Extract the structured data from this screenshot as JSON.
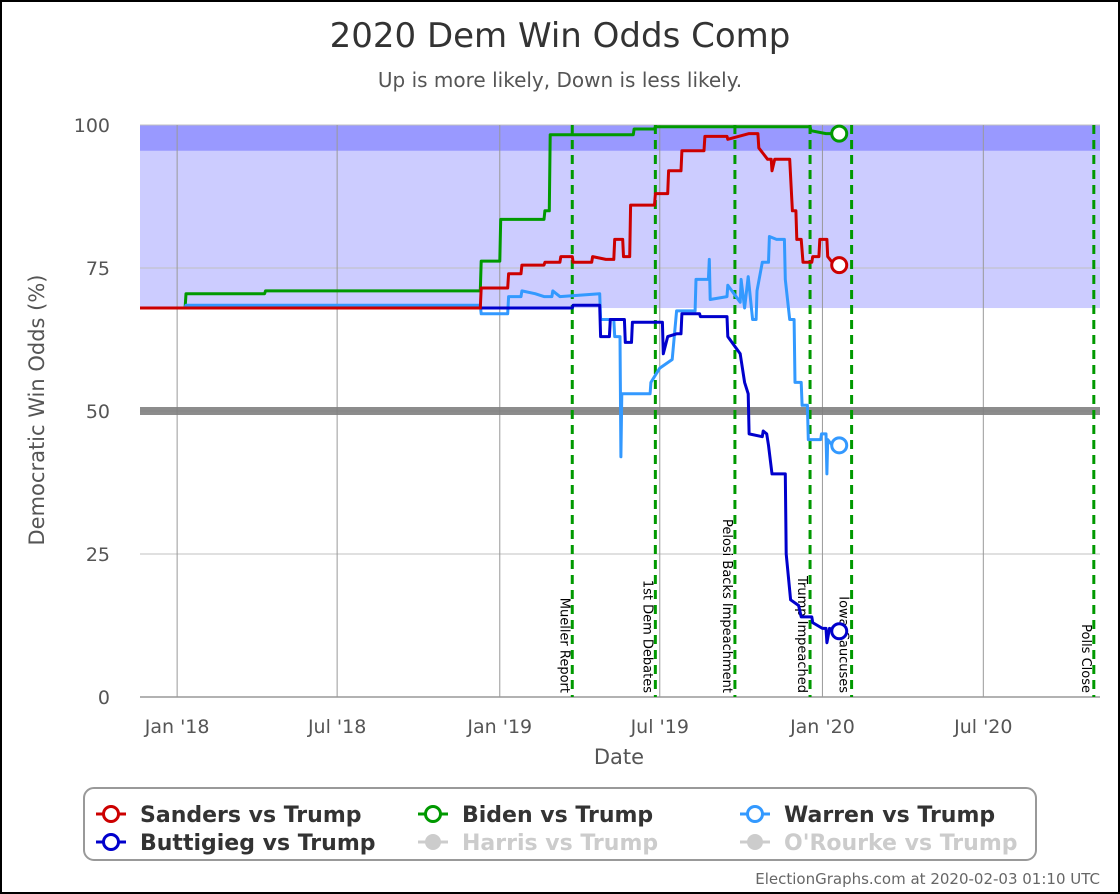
{
  "chart_data": {
    "type": "line",
    "title": "2020 Dem Win Odds Comp",
    "subtitle": "Up is more likely, Down is less likely.",
    "xlabel": "Date",
    "ylabel": "Democratic Win Odds (%)",
    "xlim": [
      "2017-11-20",
      "2020-11-10"
    ],
    "ylim": [
      0,
      100
    ],
    "x_ticks": [
      {
        "date": "2018-01-01",
        "label": "Jan '18"
      },
      {
        "date": "2018-07-01",
        "label": "Jul '18"
      },
      {
        "date": "2019-01-01",
        "label": "Jan '19"
      },
      {
        "date": "2019-07-01",
        "label": "Jul '19"
      },
      {
        "date": "2020-01-01",
        "label": "Jan '20"
      },
      {
        "date": "2020-07-01",
        "label": "Jul '20"
      }
    ],
    "y_ticks": [
      0,
      25,
      50,
      75,
      100
    ],
    "grid": true,
    "bands": [
      {
        "from": 68,
        "to": 100,
        "color": "#ccccff"
      },
      {
        "from": 95.5,
        "to": 100,
        "color": "#9999ff"
      }
    ],
    "midline": {
      "value": 50,
      "color": "#808080"
    },
    "events": [
      {
        "date": "2019-03-24",
        "label": "Mueller Report"
      },
      {
        "date": "2019-06-26",
        "label": "1st Dem Debates"
      },
      {
        "date": "2019-09-24",
        "label": "Pelosi Backs Impeachment"
      },
      {
        "date": "2019-12-18",
        "label": "Trump Impeached"
      },
      {
        "date": "2020-02-03",
        "label": "Iowa Caucuses"
      },
      {
        "date": "2020-11-03",
        "label": "Polls Close"
      }
    ],
    "series": [
      {
        "name": "Sanders vs Trump",
        "color": "#cc0000",
        "points": [
          [
            "2017-11-20",
            68
          ],
          [
            "2018-12-10",
            68
          ],
          [
            "2018-12-11",
            71.5
          ],
          [
            "2019-01-10",
            71.5
          ],
          [
            "2019-01-11",
            74
          ],
          [
            "2019-01-25",
            74
          ],
          [
            "2019-01-26",
            75.5
          ],
          [
            "2019-02-20",
            75.5
          ],
          [
            "2019-02-21",
            76
          ],
          [
            "2019-03-10",
            76
          ],
          [
            "2019-03-11",
            77
          ],
          [
            "2019-03-24",
            77
          ],
          [
            "2019-03-25",
            76
          ],
          [
            "2019-04-15",
            76
          ],
          [
            "2019-04-16",
            77
          ],
          [
            "2019-05-01",
            76.5
          ],
          [
            "2019-05-10",
            76.5
          ],
          [
            "2019-05-11",
            80
          ],
          [
            "2019-05-20",
            80
          ],
          [
            "2019-05-21",
            77
          ],
          [
            "2019-05-28",
            77
          ],
          [
            "2019-05-29",
            86
          ],
          [
            "2019-06-25",
            86
          ],
          [
            "2019-06-26",
            88
          ],
          [
            "2019-07-10",
            88
          ],
          [
            "2019-07-11",
            92
          ],
          [
            "2019-07-25",
            92
          ],
          [
            "2019-07-26",
            95.5
          ],
          [
            "2019-08-20",
            95.5
          ],
          [
            "2019-08-21",
            98
          ],
          [
            "2019-09-15",
            98
          ],
          [
            "2019-09-16",
            97.5
          ],
          [
            "2019-10-10",
            98.5
          ],
          [
            "2019-10-20",
            98.5
          ],
          [
            "2019-10-21",
            96
          ],
          [
            "2019-10-31",
            94
          ],
          [
            "2019-11-04",
            94
          ],
          [
            "2019-11-05",
            92
          ],
          [
            "2019-11-08",
            94
          ],
          [
            "2019-11-25",
            94
          ],
          [
            "2019-11-28",
            85
          ],
          [
            "2019-12-02",
            85
          ],
          [
            "2019-12-03",
            80
          ],
          [
            "2019-12-08",
            80
          ],
          [
            "2019-12-09",
            78
          ],
          [
            "2019-12-10",
            76
          ],
          [
            "2019-12-20",
            76
          ],
          [
            "2019-12-21",
            77
          ],
          [
            "2019-12-28",
            77
          ],
          [
            "2019-12-29",
            80
          ],
          [
            "2020-01-06",
            80
          ],
          [
            "2020-01-07",
            77
          ],
          [
            "2020-01-12",
            76
          ],
          [
            "2020-01-20",
            75.5
          ]
        ]
      },
      {
        "name": "Biden vs Trump",
        "color": "#009900",
        "points": [
          [
            "2017-11-20",
            68
          ],
          [
            "2018-01-10",
            68
          ],
          [
            "2018-01-11",
            70.5
          ],
          [
            "2018-04-10",
            70.5
          ],
          [
            "2018-04-11",
            71
          ],
          [
            "2018-12-10",
            71
          ],
          [
            "2018-12-11",
            76.2
          ],
          [
            "2019-01-01",
            76.2
          ],
          [
            "2019-01-02",
            83.5
          ],
          [
            "2019-02-20",
            83.5
          ],
          [
            "2019-02-21",
            85
          ],
          [
            "2019-02-26",
            85
          ],
          [
            "2019-02-27",
            98.3
          ],
          [
            "2019-06-01",
            98.3
          ],
          [
            "2019-06-02",
            99.3
          ],
          [
            "2019-06-25",
            99.3
          ],
          [
            "2019-06-26",
            99.7
          ],
          [
            "2019-12-18",
            99.7
          ],
          [
            "2019-12-19",
            99
          ],
          [
            "2020-01-05",
            98.5
          ],
          [
            "2020-01-20",
            98.5
          ]
        ]
      },
      {
        "name": "Warren vs Trump",
        "color": "#3399ff",
        "points": [
          [
            "2017-11-20",
            68
          ],
          [
            "2018-01-10",
            68
          ],
          [
            "2018-01-11",
            68.5
          ],
          [
            "2018-12-10",
            68.5
          ],
          [
            "2018-12-11",
            67
          ],
          [
            "2019-01-10",
            67
          ],
          [
            "2019-01-11",
            70
          ],
          [
            "2019-01-25",
            70
          ],
          [
            "2019-01-26",
            71
          ],
          [
            "2019-02-10",
            70.5
          ],
          [
            "2019-02-20",
            70
          ],
          [
            "2019-03-01",
            70
          ],
          [
            "2019-03-02",
            71
          ],
          [
            "2019-03-10",
            70
          ],
          [
            "2019-04-24",
            70.5
          ],
          [
            "2019-04-25",
            66
          ],
          [
            "2019-05-10",
            66
          ],
          [
            "2019-05-11",
            63
          ],
          [
            "2019-05-17",
            63
          ],
          [
            "2019-05-18",
            42
          ],
          [
            "2019-05-19",
            53
          ],
          [
            "2019-06-20",
            53
          ],
          [
            "2019-06-21",
            55
          ],
          [
            "2019-07-01",
            57.5
          ],
          [
            "2019-07-15",
            59
          ],
          [
            "2019-07-20",
            67.5
          ],
          [
            "2019-08-10",
            67.5
          ],
          [
            "2019-08-11",
            73
          ],
          [
            "2019-08-25",
            73
          ],
          [
            "2019-08-26",
            76.5
          ],
          [
            "2019-08-27",
            69.5
          ],
          [
            "2019-09-15",
            70
          ],
          [
            "2019-09-16",
            72
          ],
          [
            "2019-09-30",
            69
          ],
          [
            "2019-10-01",
            73
          ],
          [
            "2019-10-05",
            68
          ],
          [
            "2019-10-09",
            73.5
          ],
          [
            "2019-10-14",
            66
          ],
          [
            "2019-10-18",
            66
          ],
          [
            "2019-10-19",
            71
          ],
          [
            "2019-10-25",
            76
          ],
          [
            "2019-11-01",
            76
          ],
          [
            "2019-11-02",
            80.5
          ],
          [
            "2019-11-10",
            80
          ],
          [
            "2019-11-19",
            80
          ],
          [
            "2019-11-20",
            73
          ],
          [
            "2019-11-25",
            66
          ],
          [
            "2019-11-30",
            66
          ],
          [
            "2019-12-01",
            55
          ],
          [
            "2019-12-08",
            55
          ],
          [
            "2019-12-09",
            51
          ],
          [
            "2019-12-15",
            51
          ],
          [
            "2019-12-16",
            45
          ],
          [
            "2019-12-30",
            45
          ],
          [
            "2019-12-31",
            46
          ],
          [
            "2020-01-05",
            46
          ],
          [
            "2020-01-06",
            39
          ],
          [
            "2020-01-07",
            45
          ],
          [
            "2020-01-12",
            44
          ],
          [
            "2020-01-20",
            44
          ]
        ]
      },
      {
        "name": "Buttigieg vs Trump",
        "color": "#0000cc",
        "points": [
          [
            "2017-11-20",
            68
          ],
          [
            "2018-12-10",
            68
          ],
          [
            "2019-03-24",
            68
          ],
          [
            "2019-03-25",
            68.5
          ],
          [
            "2019-04-24",
            68.5
          ],
          [
            "2019-04-25",
            63
          ],
          [
            "2019-05-05",
            63
          ],
          [
            "2019-05-06",
            66
          ],
          [
            "2019-05-22",
            66
          ],
          [
            "2019-05-23",
            62
          ],
          [
            "2019-05-30",
            62
          ],
          [
            "2019-05-31",
            65.5
          ],
          [
            "2019-07-04",
            65.5
          ],
          [
            "2019-07-05",
            60
          ],
          [
            "2019-07-10",
            63
          ],
          [
            "2019-07-20",
            63.5
          ],
          [
            "2019-07-25",
            63.5
          ],
          [
            "2019-07-26",
            67
          ],
          [
            "2019-08-15",
            67
          ],
          [
            "2019-08-16",
            66.5
          ],
          [
            "2019-09-15",
            66.5
          ],
          [
            "2019-09-16",
            63
          ],
          [
            "2019-09-30",
            60
          ],
          [
            "2019-10-05",
            55
          ],
          [
            "2019-10-09",
            53
          ],
          [
            "2019-10-10",
            46
          ],
          [
            "2019-10-25",
            45.5
          ],
          [
            "2019-10-26",
            46.5
          ],
          [
            "2019-10-30",
            46
          ],
          [
            "2019-11-01",
            44
          ],
          [
            "2019-11-05",
            39
          ],
          [
            "2019-11-20",
            39
          ],
          [
            "2019-11-21",
            25
          ],
          [
            "2019-11-26",
            17
          ],
          [
            "2019-12-05",
            16
          ],
          [
            "2019-12-08",
            14
          ],
          [
            "2019-12-20",
            14
          ],
          [
            "2019-12-21",
            13
          ],
          [
            "2020-01-01",
            12
          ],
          [
            "2020-01-05",
            12
          ],
          [
            "2020-01-06",
            9.5
          ],
          [
            "2020-01-09",
            12
          ],
          [
            "2020-01-20",
            11.5
          ]
        ]
      }
    ],
    "legend": {
      "placement": "bottom",
      "items": [
        {
          "label": "Sanders vs Trump",
          "color": "#cc0000",
          "active": true
        },
        {
          "label": "Biden vs Trump",
          "color": "#009900",
          "active": true
        },
        {
          "label": "Warren vs Trump",
          "color": "#3399ff",
          "active": true
        },
        {
          "label": "Buttigieg vs Trump",
          "color": "#0000cc",
          "active": true
        },
        {
          "label": "Harris vs Trump",
          "color": "#cccccc",
          "active": false
        },
        {
          "label": "O'Rourke vs Trump",
          "color": "#cccccc",
          "active": false
        }
      ]
    },
    "credit": "ElectionGraphs.com at 2020-02-03 01:10 UTC"
  }
}
